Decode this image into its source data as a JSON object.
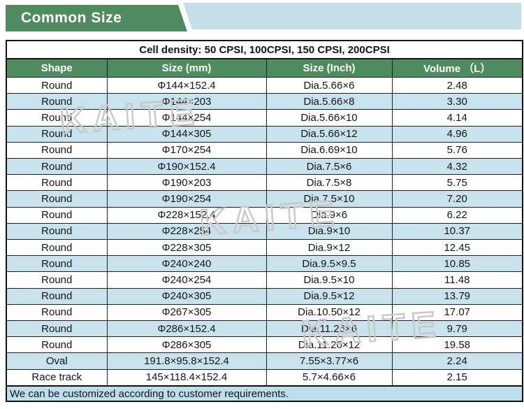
{
  "banner": {
    "title": "Common Size"
  },
  "watermark": {
    "text": "KAITE"
  },
  "colors": {
    "banner_green": "#4e8b5e",
    "banner_blue": "#c5dfe9",
    "header_green": "#4e8b5e",
    "row_alt_blue": "#c9e3ee",
    "footer_blue": "#bcdeec",
    "border": "#1f1f1f",
    "watermark_gray": "#c9c9c9",
    "text": "#141414"
  },
  "table": {
    "cell_density": "Cell density: 50 CPSI, 100CPSI, 150 CPSI, 200CPSI",
    "columns": [
      "Shape",
      "Size (mm)",
      "Size (Inch)",
      "Volume （L）"
    ],
    "rows": [
      {
        "shape": "Round",
        "size_mm": "Φ144×152.4",
        "size_inch": "Dia.5.66×6",
        "volume": "2.48"
      },
      {
        "shape": "Round",
        "size_mm": "Φ144×203",
        "size_inch": "Dia.5.66×8",
        "volume": "3.30"
      },
      {
        "shape": "Round",
        "size_mm": "Φ144×254",
        "size_inch": "Dia.5.66×10",
        "volume": "4.14"
      },
      {
        "shape": "Round",
        "size_mm": "Φ144×305",
        "size_inch": "Dia.5.66×12",
        "volume": "4.96"
      },
      {
        "shape": "Round",
        "size_mm": "Φ170×254",
        "size_inch": "Dia.6.69×10",
        "volume": "5.76"
      },
      {
        "shape": "Round",
        "size_mm": "Φ190×152.4",
        "size_inch": "Dia.7.5×6",
        "volume": "4.32"
      },
      {
        "shape": "Round",
        "size_mm": "Φ190×203",
        "size_inch": "Dia.7.5×8",
        "volume": "5.75"
      },
      {
        "shape": "Round",
        "size_mm": "Φ190×254",
        "size_inch": "Dia.7.5×10",
        "volume": "7.20"
      },
      {
        "shape": "Round",
        "size_mm": "Φ228×152.4",
        "size_inch": "Dia.9×6",
        "volume": "6.22"
      },
      {
        "shape": "Round",
        "size_mm": "Φ228×254",
        "size_inch": "Dia.9×10",
        "volume": "10.37"
      },
      {
        "shape": "Round",
        "size_mm": "Φ228×305",
        "size_inch": "Dia.9×12",
        "volume": "12.45"
      },
      {
        "shape": "Round",
        "size_mm": "Φ240×240",
        "size_inch": "Dia.9.5×9.5",
        "volume": "10.85"
      },
      {
        "shape": "Round",
        "size_mm": "Φ240×254",
        "size_inch": "Dia.9.5×10",
        "volume": "11.48"
      },
      {
        "shape": "Round",
        "size_mm": "Φ240×305",
        "size_inch": "Dia.9.5×12",
        "volume": "13.79"
      },
      {
        "shape": "Round",
        "size_mm": "Φ267×305",
        "size_inch": "Dia.10.50×12",
        "volume": "17.07"
      },
      {
        "shape": "Round",
        "size_mm": "Φ286×152.4",
        "size_inch": "Dia.11.26×6",
        "volume": "9.79"
      },
      {
        "shape": "Round",
        "size_mm": "Φ286×305",
        "size_inch": "Dia.11.26×12",
        "volume": "19.58"
      },
      {
        "shape": "Oval",
        "size_mm": "191.8×95.8×152.4",
        "size_inch": "7.55×3.77×6",
        "volume": "2.24"
      },
      {
        "shape": "Race track",
        "size_mm": "145×118.4×152.4",
        "size_inch": "5.7×4.66×6",
        "volume": "2.15"
      }
    ],
    "footer_note": "We can be customized according to customer requirements."
  }
}
